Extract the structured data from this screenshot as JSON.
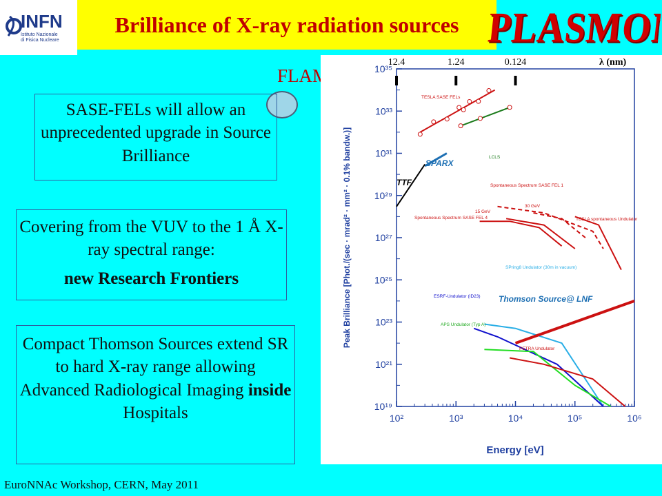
{
  "slide": {
    "title": "Brilliance of X-ray radiation sources",
    "logo": {
      "letters": "INFN",
      "line1": "Istituto Nazionale",
      "line2": "di Fisica Nucleare"
    },
    "brand": "PLASMONX",
    "flame": "FLAME",
    "box1": {
      "text": "SASE-FELs will allow an unprecedented upgrade in Source Brilliance"
    },
    "box2": {
      "line1": "Covering from the VUV to the 1 Å X-ray spectral range:",
      "bold": "new Research Frontiers"
    },
    "box3": {
      "line1": "Compact Thomson Sources extend SR to hard X-ray range allowing",
      "line2a": "Advanced Radiological Imaging ",
      "bold": "inside",
      "line2b": " Hospitals"
    },
    "footer": "EuroNNAc Workshop, CERN, May 2011"
  },
  "chart_data": {
    "type": "line",
    "xscale": "log",
    "yscale": "log",
    "xlim": [
      100,
      1000000
    ],
    "ylim": [
      1e+19,
      1e+35
    ],
    "xlabel": "Energy [eV]",
    "ylabel": "Peak Brilliance [Phot./(sec · mrad² · mm² · 0.1% bandw.)]",
    "x_ticks": [
      "10²",
      "10³",
      "10⁴",
      "10⁵",
      "10⁶"
    ],
    "y_ticks": [
      "10¹⁹",
      "10²¹",
      "10²³",
      "10²⁵",
      "10²⁷",
      "10²⁹",
      "10³¹",
      "10³³",
      "10³⁵"
    ],
    "top_axis": {
      "ticks": [
        "12.4",
        "1.24",
        "0.124"
      ],
      "label": "λ (nm)"
    },
    "colors": {
      "red": "#cc1111",
      "green": "#1a7a1a",
      "blue": "#1010cc",
      "lightblue": "#29aee6",
      "lime": "#22dd22",
      "sparx": "#1d6fb3",
      "axis": "#2040a0"
    },
    "series": [
      {
        "name": "TESLA SASE FELs",
        "color": "red",
        "x": [
          250,
          4500
        ],
        "y": [
          1e+32,
          1e+34
        ]
      },
      {
        "name": "LCLS",
        "color": "green",
        "x": [
          1200,
          8000
        ],
        "y": [
          2e+32,
          1.5e+33
        ]
      },
      {
        "name": "SPARX",
        "color": "sparx",
        "x": [
          300,
          700
        ],
        "y": [
          2.5e+30,
          1e+31
        ]
      },
      {
        "name": "TTF",
        "color": "black",
        "x": [
          100,
          300
        ],
        "y": [
          3e+28,
          3e+30
        ]
      },
      {
        "name": "Spontaneous Spectrum SASE FEL 1",
        "color": "red",
        "x": [
          5000,
          30000,
          200000,
          300000
        ],
        "y": [
          3e+28,
          1.5e+28,
          2e+27,
          3e+26
        ]
      },
      {
        "name": "30 GeV",
        "color": "red",
        "x": [
          20000,
          60000,
          150000
        ],
        "y": [
          1.5e+28,
          8e+27,
          1e+27
        ]
      },
      {
        "name": "15 GeV",
        "color": "red",
        "x": [
          7000,
          30000,
          100000
        ],
        "y": [
          8e+27,
          4e+27,
          3e+26
        ]
      },
      {
        "name": "Spontaneous Spectrum SASE FEL 4",
        "color": "red",
        "x": [
          2500,
          8000,
          25000,
          60000
        ],
        "y": [
          6e+27,
          6e+27,
          3e+27,
          4e+26
        ]
      },
      {
        "name": "TESLA spontaneous Undulator",
        "color": "red",
        "x": [
          100000,
          250000,
          600000
        ],
        "y": [
          1e+28,
          4e+27,
          3e+25
        ]
      },
      {
        "name": "SPring8 Undulator (30 m in vacuum)",
        "color": "lightblue",
        "x": [
          3000,
          10000,
          60000,
          300000
        ],
        "y": [
          8e+22,
          5e+22,
          1e+22,
          1e+19
        ]
      },
      {
        "name": "ESRF-Undulator (ID23)",
        "color": "blue",
        "x": [
          2000,
          5000,
          50000,
          300000
        ],
        "y": [
          5e+22,
          2e+22,
          1e+21,
          1e+19
        ]
      },
      {
        "name": "APS Undulator (Typ A)",
        "color": "lime",
        "x": [
          3000,
          20000,
          100000,
          400000
        ],
        "y": [
          5e+21,
          4e+21,
          1e+20,
          1e+19
        ]
      },
      {
        "name": "PETRA Undulator",
        "color": "red",
        "x": [
          8000,
          30000,
          200000,
          700000
        ],
        "y": [
          2e+21,
          1e+21,
          2e+20,
          1e+19
        ]
      },
      {
        "name": "Thomson Source@ LNF",
        "color": "red",
        "x": [
          10000,
          1000000
        ],
        "y": [
          1e+22,
          1e+24
        ]
      }
    ],
    "labels": {
      "tesla": "TESLA SASE FELs",
      "lcls": "LCLS",
      "sparx": "SPARX",
      "ttf": "TTF",
      "sp1": "Spontaneous Spectrum SASE FEL 1",
      "gev30": "30 GeV",
      "gev15": "15 GeV",
      "sp4": "Spontaneous Spectrum SASE FEL 4",
      "tesla_sp": "TESLA spontaneous Undulator",
      "spring8": "SPring8 Undulator (30m in vacuum)",
      "esrf": "ESRF-Undulator (ID23)",
      "aps": "APS Undulator (Typ A)",
      "petra": "PETRA Undulator",
      "thomson": "Thomson Source@ LNF"
    }
  }
}
